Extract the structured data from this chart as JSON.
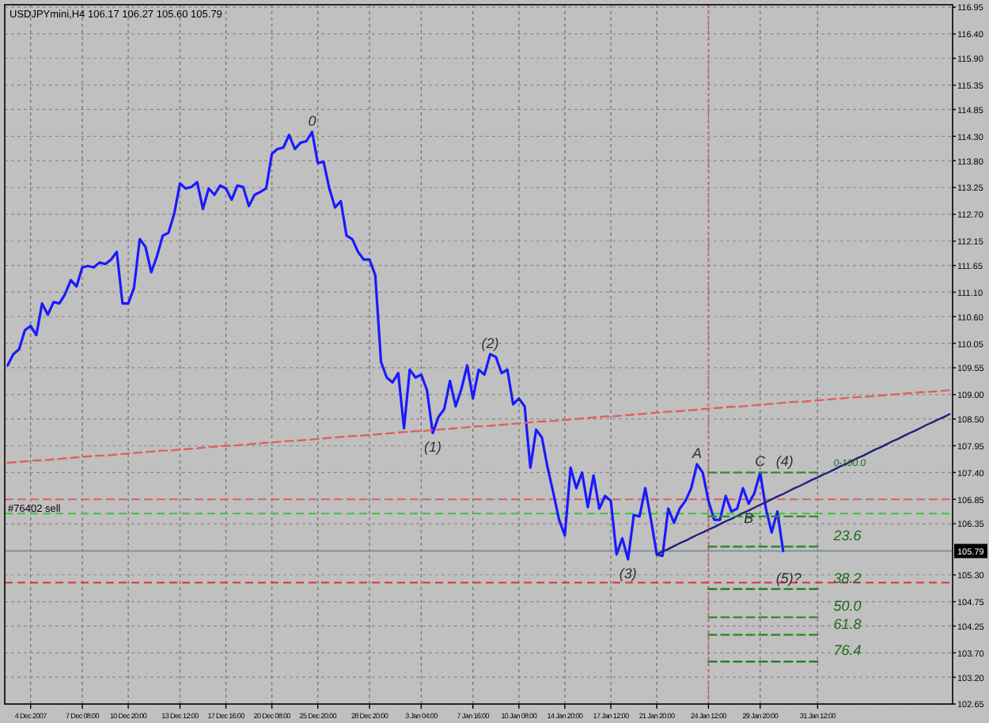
{
  "chart_data": {
    "type": "line",
    "title": "USDJPYmini,H4 106.17 106.27 105.60 105.79",
    "categories": [
      null,
      null,
      null,
      null,
      "4 Dec 2007",
      null,
      null,
      null,
      null,
      null,
      null,
      null,
      null,
      "7 Dec 08:00",
      null,
      null,
      null,
      null,
      null,
      null,
      null,
      "10 Dec 20:00",
      null,
      null,
      null,
      null,
      null,
      null,
      null,
      null,
      "13 Dec 12:00",
      null,
      null,
      null,
      null,
      null,
      null,
      null,
      "17 Dec 16:00",
      null,
      null,
      null,
      null,
      null,
      null,
      null,
      "20 Dec 08:00",
      null,
      null,
      null,
      null,
      null,
      null,
      null,
      "25 Dec 20:00",
      null,
      null,
      null,
      null,
      null,
      null,
      null,
      null,
      "28 Dec 20:00",
      null,
      null,
      null,
      null,
      null,
      null,
      null,
      null,
      "3 Jan 04:00",
      null,
      null,
      null,
      null,
      null,
      null,
      null,
      null,
      "7 Jan 16:00",
      null,
      null,
      null,
      null,
      null,
      null,
      null,
      "10 Jan 08:00",
      null,
      null,
      null,
      null,
      null,
      null,
      null,
      "14 Jan 20:00",
      null,
      null,
      null,
      null,
      null,
      null,
      null,
      "17 Jan 12:00",
      null,
      null,
      null,
      null,
      null,
      null,
      null,
      "21 Jan 20:00",
      null,
      null,
      null,
      null,
      null,
      null,
      null,
      null,
      "24 Jan 12:00",
      null,
      null,
      null,
      null,
      null,
      null,
      null,
      null,
      "29 Jan 20:00",
      null,
      null,
      null,
      null,
      null,
      null,
      null,
      null,
      null,
      "31 Jan 12:00",
      null,
      null,
      null,
      null,
      null,
      null,
      null,
      null,
      null,
      null,
      null,
      null,
      null,
      null,
      null,
      null,
      null,
      null,
      null,
      null,
      null,
      null,
      null
    ],
    "ylim": [
      102.65,
      117.0
    ],
    "yticks": [
      116.95,
      {
        "value": 116.4,
        "label": "116.40"
      },
      {
        "value": 115.9,
        "label": "115.90"
      },
      115.35,
      114.85,
      {
        "value": 114.3,
        "label": "114.30"
      },
      {
        "value": 113.8,
        "label": "113.80"
      },
      113.25,
      {
        "value": 112.7,
        "label": "112.70"
      },
      112.15,
      111.65,
      {
        "value": 111.1,
        "label": "111.10"
      },
      {
        "value": 110.6,
        "label": "110.60"
      },
      110.05,
      109.55,
      {
        "value": 109.0,
        "label": "109.00"
      },
      {
        "value": 108.5,
        "label": "108.50"
      },
      107.95,
      {
        "value": 107.4,
        "label": "107.40"
      },
      106.85,
      106.35,
      {
        "value": 105.3,
        "label": "105.30"
      },
      104.75,
      104.25,
      {
        "value": 103.7,
        "label": "103.70"
      },
      {
        "value": 103.2,
        "label": "103.20"
      },
      102.65
    ],
    "grid": true,
    "series": [
      {
        "color": "#1a1aff",
        "line_style": "solid",
        "values": [
          109.6,
          109.83,
          109.93,
          110.32,
          110.41,
          110.22,
          110.87,
          110.64,
          110.9,
          110.87,
          111.06,
          111.35,
          111.22,
          111.61,
          111.64,
          111.61,
          111.71,
          111.68,
          111.77,
          111.93,
          110.87,
          110.87,
          111.19,
          112.19,
          112.03,
          111.51,
          111.84,
          112.26,
          112.32,
          112.71,
          113.33,
          113.23,
          113.26,
          113.36,
          112.81,
          113.23,
          113.1,
          113.29,
          113.23,
          113.0,
          113.29,
          113.26,
          112.87,
          113.1,
          113.16,
          113.23,
          113.94,
          114.04,
          114.07,
          114.33,
          114.04,
          114.17,
          114.2,
          114.39,
          113.75,
          113.78,
          113.23,
          112.84,
          112.97,
          112.26,
          112.19,
          111.93,
          111.77,
          111.77,
          111.45,
          109.67,
          109.35,
          109.25,
          109.44,
          108.31,
          109.51,
          109.35,
          109.41,
          109.09,
          108.21,
          108.54,
          108.7,
          109.28,
          108.76,
          109.12,
          109.6,
          108.92,
          109.51,
          109.41,
          109.83,
          109.77,
          109.44,
          109.51,
          108.8,
          108.92,
          108.76,
          107.5,
          108.28,
          108.12,
          107.5,
          106.98,
          106.43,
          106.11,
          107.5,
          107.08,
          107.4,
          106.69,
          107.34,
          106.66,
          106.92,
          106.82,
          105.72,
          106.05,
          105.62,
          106.53,
          106.5,
          107.08,
          106.43,
          105.72,
          105.69,
          106.66,
          106.37,
          106.66,
          106.82,
          107.08,
          107.57,
          107.4,
          106.82,
          106.43,
          106.43,
          106.92,
          106.6,
          106.66,
          107.08,
          106.76,
          106.98,
          107.4,
          106.66,
          106.17,
          106.6,
          105.79,
          null,
          null,
          null,
          null,
          null,
          null,
          null,
          null,
          null,
          null,
          null,
          null,
          null,
          null,
          null,
          null,
          null,
          null,
          null,
          null,
          null,
          null,
          null,
          null,
          null,
          null,
          null,
          null,
          null
        ]
      },
      {
        "type": "line",
        "color": "#e06060",
        "line_style": "dashed",
        "values": [
          107.6,
          107.61,
          107.62,
          107.63,
          107.64,
          107.65,
          107.65,
          107.66,
          107.67,
          107.68,
          107.69,
          107.7,
          107.71,
          107.72,
          107.73,
          107.74,
          107.75,
          107.75,
          107.76,
          107.77,
          107.78,
          107.79,
          107.8,
          107.81,
          107.82,
          107.83,
          107.84,
          107.85,
          107.85,
          107.86,
          107.87,
          107.88,
          107.89,
          107.9,
          107.91,
          107.92,
          107.93,
          107.94,
          107.95,
          107.95,
          107.96,
          107.97,
          107.98,
          107.99,
          108.0,
          108.01,
          108.02,
          108.03,
          108.04,
          108.05,
          108.05,
          108.06,
          108.07,
          108.08,
          108.09,
          108.1,
          108.11,
          108.12,
          108.13,
          108.14,
          108.15,
          108.15,
          108.16,
          108.17,
          108.18,
          108.19,
          108.2,
          108.21,
          108.22,
          108.23,
          108.24,
          108.25,
          108.25,
          108.26,
          108.27,
          108.28,
          108.29,
          108.3,
          108.31,
          108.32,
          108.33,
          108.34,
          108.35,
          108.35,
          108.36,
          108.37,
          108.38,
          108.39,
          108.4,
          108.41,
          108.42,
          108.43,
          108.44,
          108.45,
          108.45,
          108.46,
          108.47,
          108.48,
          108.49,
          108.5,
          108.51,
          108.52,
          108.53,
          108.54,
          108.55,
          108.55,
          108.56,
          108.57,
          108.58,
          108.59,
          108.6,
          108.61,
          108.62,
          108.63,
          108.64,
          108.65,
          108.65,
          108.66,
          108.67,
          108.68,
          108.69,
          108.7,
          108.71,
          108.72,
          108.73,
          108.74,
          108.75,
          108.75,
          108.76,
          108.77,
          108.78,
          108.79,
          108.8,
          108.81,
          108.82,
          108.83,
          108.84,
          108.85,
          108.85,
          108.86,
          108.87,
          108.88,
          108.89,
          108.9,
          108.91,
          108.92,
          108.93,
          108.94,
          108.95,
          108.95,
          108.96,
          108.97,
          108.98,
          108.99,
          109.0,
          109.01,
          109.02,
          109.03,
          109.04,
          109.05,
          109.05,
          109.06,
          109.07,
          109.08,
          109.09
        ]
      },
      {
        "type": "line",
        "color": "#20207f",
        "line_style": "solid",
        "values": [
          null,
          null,
          null,
          null,
          null,
          null,
          null,
          null,
          null,
          null,
          null,
          null,
          null,
          null,
          null,
          null,
          null,
          null,
          null,
          null,
          null,
          null,
          null,
          null,
          null,
          null,
          null,
          null,
          null,
          null,
          null,
          null,
          null,
          null,
          null,
          null,
          null,
          null,
          null,
          null,
          null,
          null,
          null,
          null,
          null,
          null,
          null,
          null,
          null,
          null,
          null,
          null,
          null,
          null,
          null,
          null,
          null,
          null,
          null,
          null,
          null,
          null,
          null,
          null,
          null,
          null,
          null,
          null,
          null,
          null,
          null,
          null,
          null,
          null,
          null,
          null,
          null,
          null,
          null,
          null,
          null,
          null,
          null,
          null,
          null,
          null,
          null,
          null,
          null,
          null,
          null,
          null,
          null,
          null,
          null,
          null,
          null,
          null,
          null,
          null,
          null,
          null,
          null,
          null,
          null,
          null,
          null,
          null,
          null,
          null,
          null,
          null,
          null,
          105.72,
          105.78,
          105.83,
          105.89,
          105.95,
          106.0,
          106.06,
          106.12,
          106.17,
          106.23,
          106.28,
          106.34,
          106.4,
          106.45,
          106.51,
          106.57,
          106.62,
          106.68,
          106.74,
          106.79,
          106.85,
          106.91,
          106.96,
          107.02,
          107.08,
          107.13,
          107.19,
          107.25,
          107.3,
          107.36,
          107.41,
          107.47,
          107.53,
          107.58,
          107.64,
          107.7,
          107.75,
          107.81,
          107.87,
          107.92,
          107.98,
          108.04,
          108.09,
          108.15,
          108.21,
          108.26,
          108.32,
          108.38,
          108.43,
          108.49,
          108.54,
          108.6
        ]
      },
      {
        "type": "line",
        "color": "#2e8b2e",
        "line_style": "dashed",
        "x": [
          "24 Jan 12:00",
          "31 Jan 12:00"
        ],
        "values": [
          107.4,
          107.4
        ]
      },
      {
        "type": "line",
        "color": "#2e8b2e",
        "line_style": "dashed",
        "x": [
          "24 Jan 12:00",
          "31 Jan 12:00"
        ],
        "values": [
          106.5,
          106.5
        ]
      },
      {
        "type": "line",
        "color": "#2e8b2e",
        "line_style": "dashed",
        "x": [
          "24 Jan 12:00",
          "31 Jan 12:00"
        ],
        "values": [
          105.88,
          105.88
        ]
      },
      {
        "type": "line",
        "color": "#1a7a1a",
        "line_style": "dashed",
        "x": [
          "24 Jan 12:00",
          "31 Jan 12:00"
        ],
        "values": [
          105.01,
          105.01
        ]
      },
      {
        "type": "line",
        "color": "#2e8b2e",
        "line_style": "dashed",
        "x": [
          "24 Jan 12:00",
          "31 Jan 12:00"
        ],
        "values": [
          104.43,
          104.43
        ]
      },
      {
        "type": "line",
        "color": "#2e8b2e",
        "line_style": "dashed",
        "x": [
          "24 Jan 12:00",
          "31 Jan 12:00"
        ],
        "values": [
          104.07,
          104.07
        ]
      },
      {
        "type": "line",
        "color": "#1a7a1a",
        "line_style": "dashed",
        "x": [
          "24 Jan 12:00",
          "31 Jan 12:00"
        ],
        "values": [
          103.52,
          103.52
        ]
      }
    ],
    "ref_lines": [
      {
        "axis": "y",
        "value": 106.85,
        "label": "#76402 sell",
        "color": "#e06060",
        "line_style": "dashed"
      },
      {
        "axis": "y",
        "value": 106.56,
        "color": "#40c040",
        "line_style": "dashed"
      },
      {
        "axis": "y",
        "value": 105.14,
        "color": "#e03030",
        "line_style": "dashed"
      },
      {
        "axis": "y",
        "value": 105.79,
        "label": "105.79",
        "color": "#8090a0",
        "line_style": "solid"
      },
      {
        "axis": "x",
        "value": "24 Jan 12:00",
        "color": "#e06060",
        "line_style": "dotted"
      }
    ],
    "annotations": [
      {
        "text": "0",
        "y": 114.39
      },
      {
        "text": "(1)",
        "y": 108.21
      },
      {
        "text": "(2)",
        "y": 109.83
      },
      {
        "text": "(3)",
        "y": 105.62
      },
      {
        "text": "A",
        "y": 107.57
      },
      {
        "text": "B",
        "y": 106.76
      },
      {
        "text": "C",
        "y": 107.4
      },
      {
        "text": "(4)",
        "x": "29 Jan 20:00",
        "y": 107.4
      },
      {
        "text": "(5)?",
        "x": "29 Jan 20:00",
        "y": 105.01
      },
      {
        "text": "0-100.0",
        "x": "31 Jan 12:00",
        "y": 107.4
      },
      {
        "text": "23.6",
        "x": "31 Jan 12:00",
        "y": 105.88
      },
      {
        "text": "38.2",
        "x": "31 Jan 12:00",
        "y": 105.01
      },
      {
        "text": "50.0",
        "x": "31 Jan 12:00",
        "y": 104.43
      },
      {
        "text": "61.8",
        "x": "31 Jan 12:00",
        "y": 104.07
      },
      {
        "text": "76.4",
        "x": "31 Jan 12:00",
        "y": 103.52
      }
    ]
  }
}
